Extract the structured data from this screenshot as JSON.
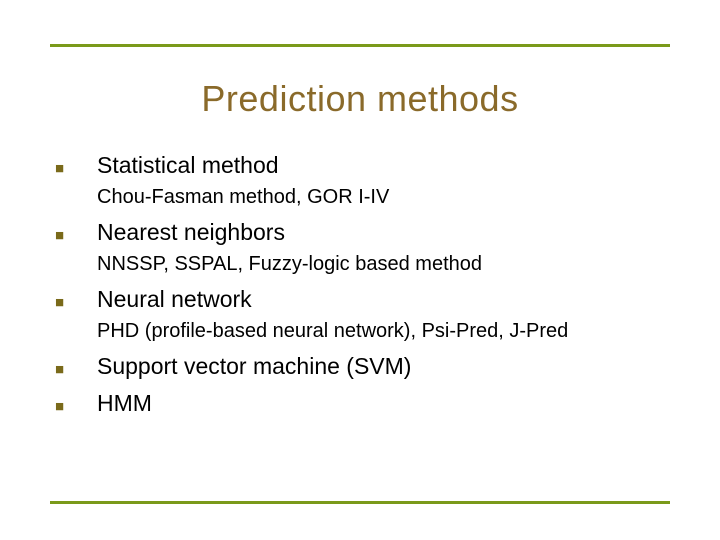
{
  "slide": {
    "title": "Prediction methods",
    "rule_color": "#7a9a1a",
    "title_color": "#8a6a2a",
    "bullet_color": "#7a6a1a",
    "main_fontsize": 23,
    "detail_fontsize": 20,
    "title_fontsize": 36,
    "items": [
      {
        "main": "Statistical method",
        "detail": "Chou-Fasman method, GOR I-IV"
      },
      {
        "main": "Nearest neighbors",
        "detail": "NNSSP, SSPAL, Fuzzy-logic based method"
      },
      {
        "main": "Neural network",
        "detail": "PHD (profile-based neural network), Psi-Pred, J-Pred"
      },
      {
        "main": "Support vector machine (SVM)",
        "detail": ""
      },
      {
        "main": "HMM",
        "detail": ""
      }
    ],
    "bullet_glyph": "■"
  }
}
